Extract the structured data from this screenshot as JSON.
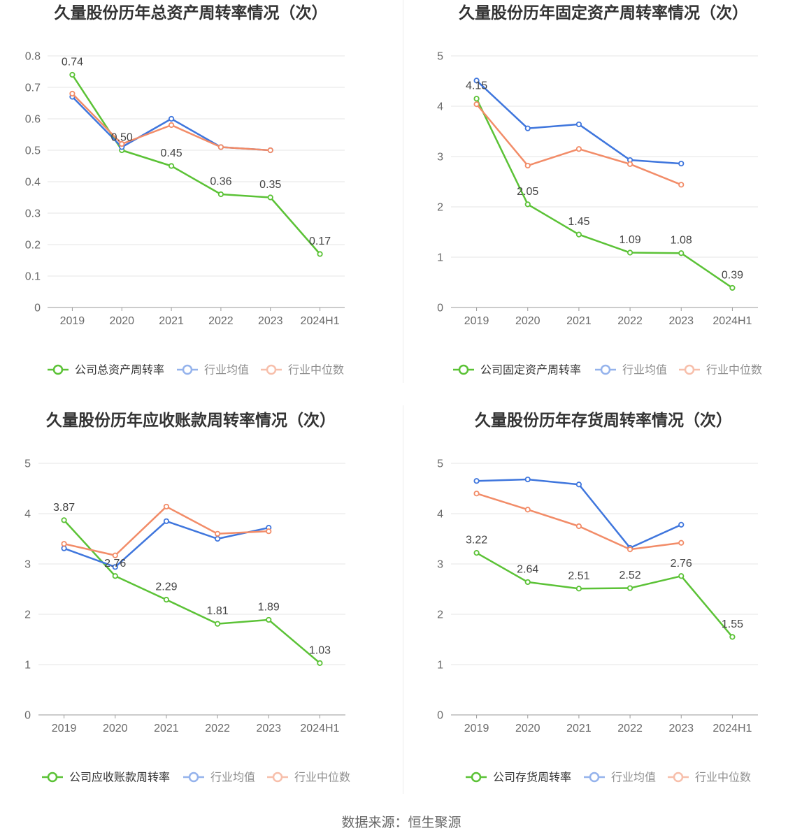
{
  "chart_data": [
    {
      "type": "line",
      "title": "久量股份历年总资产周转率情况（次）",
      "categories": [
        "2019",
        "2020",
        "2021",
        "2022",
        "2023",
        "2024H1"
      ],
      "ylim": [
        0,
        0.8
      ],
      "yticks": [
        0,
        0.1,
        0.2,
        0.3,
        0.4,
        0.5,
        0.6,
        0.7,
        0.8
      ],
      "grid": true,
      "legend": "bottom",
      "series": [
        {
          "name": "公司总资产周转率",
          "color": "#5bc236",
          "data_labels": true,
          "values": [
            0.74,
            0.5,
            0.45,
            0.36,
            0.35,
            0.17
          ]
        },
        {
          "name": "行业均值",
          "color": "#3f76dd",
          "values": [
            0.67,
            0.51,
            0.6,
            0.51,
            0.5,
            null
          ]
        },
        {
          "name": "行业中位数",
          "color": "#f28c68",
          "values": [
            0.68,
            0.52,
            0.58,
            0.51,
            0.5,
            null
          ]
        }
      ]
    },
    {
      "type": "line",
      "title": "久量股份历年固定资产周转率情况（次）",
      "categories": [
        "2019",
        "2020",
        "2021",
        "2022",
        "2023",
        "2024H1"
      ],
      "ylim": [
        0,
        5
      ],
      "yticks": [
        0,
        1,
        2,
        3,
        4,
        5
      ],
      "grid": true,
      "legend": "bottom",
      "series": [
        {
          "name": "公司固定资产周转率",
          "color": "#5bc236",
          "data_labels": true,
          "values": [
            4.15,
            2.05,
            1.45,
            1.09,
            1.08,
            0.39
          ]
        },
        {
          "name": "行业均值",
          "color": "#3f76dd",
          "values": [
            4.51,
            3.56,
            3.64,
            2.93,
            2.86,
            null
          ]
        },
        {
          "name": "行业中位数",
          "color": "#f28c68",
          "values": [
            4.04,
            2.82,
            3.15,
            2.85,
            2.44,
            null
          ]
        }
      ]
    },
    {
      "type": "line",
      "title": "久量股份历年应收账款周转率情况（次）",
      "categories": [
        "2019",
        "2020",
        "2021",
        "2022",
        "2023",
        "2024H1"
      ],
      "ylim": [
        0,
        5
      ],
      "yticks": [
        0,
        1,
        2,
        3,
        4,
        5
      ],
      "grid": true,
      "legend": "bottom",
      "series": [
        {
          "name": "公司应收账款周转率",
          "color": "#5bc236",
          "data_labels": true,
          "values": [
            3.87,
            2.76,
            2.29,
            1.81,
            1.89,
            1.03
          ]
        },
        {
          "name": "行业均值",
          "color": "#3f76dd",
          "values": [
            3.31,
            2.94,
            3.85,
            3.5,
            3.72,
            null
          ]
        },
        {
          "name": "行业中位数",
          "color": "#f28c68",
          "values": [
            3.4,
            3.17,
            4.14,
            3.6,
            3.65,
            null
          ]
        }
      ]
    },
    {
      "type": "line",
      "title": "久量股份历年存货周转率情况（次）",
      "categories": [
        "2019",
        "2020",
        "2021",
        "2022",
        "2023",
        "2024H1"
      ],
      "ylim": [
        0,
        5
      ],
      "yticks": [
        0,
        1,
        2,
        3,
        4,
        5
      ],
      "grid": true,
      "legend": "bottom",
      "series": [
        {
          "name": "公司存货周转率",
          "color": "#5bc236",
          "data_labels": true,
          "values": [
            3.22,
            2.64,
            2.51,
            2.52,
            2.76,
            1.55
          ]
        },
        {
          "name": "行业均值",
          "color": "#3f76dd",
          "values": [
            4.65,
            4.68,
            4.58,
            3.32,
            3.78,
            null
          ]
        },
        {
          "name": "行业中位数",
          "color": "#f28c68",
          "values": [
            4.4,
            4.08,
            3.75,
            3.29,
            3.42,
            null
          ]
        }
      ]
    }
  ],
  "footer": {
    "source": "数据来源：恒生聚源"
  }
}
